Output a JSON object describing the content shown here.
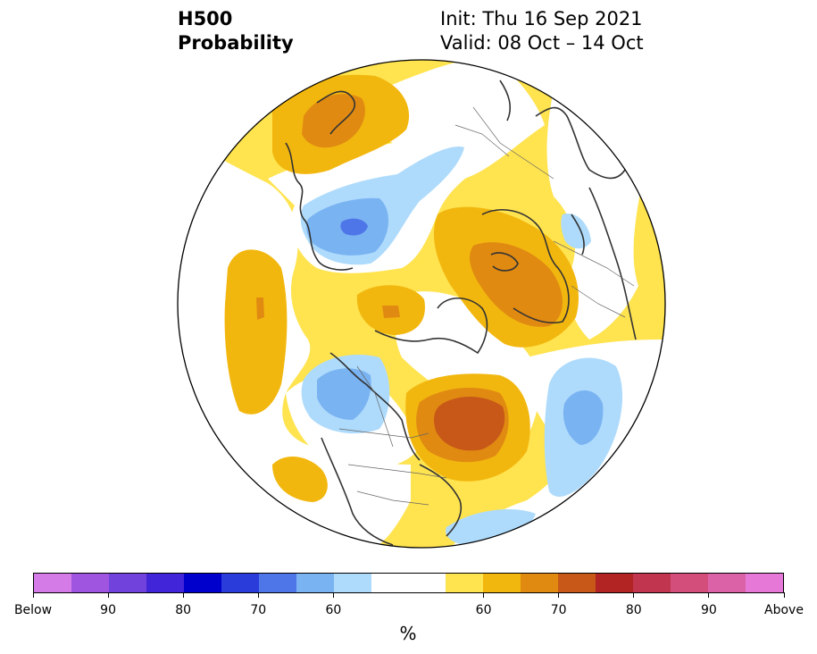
{
  "title": {
    "line1": "H500",
    "line2": "Probability",
    "init": "Init: Thu 16 Sep 2021",
    "valid": "Valid: 08 Oct – 14 Oct"
  },
  "colorbar": {
    "colors": [
      "#d47be8",
      "#a055e0",
      "#7242dc",
      "#4125d8",
      "#0000cc",
      "#2a3ddb",
      "#4f76e8",
      "#7ab3f2",
      "#aedbfc",
      "#ffffff",
      "#ffffff",
      "#ffe34f",
      "#f2b70e",
      "#e08a12",
      "#c85818",
      "#b22424",
      "#c2354f",
      "#d44e7c",
      "#dc62a8",
      "#e678d8"
    ],
    "tick_labels": [
      "Below",
      "90",
      "80",
      "70",
      "60",
      "60",
      "70",
      "80",
      "90",
      "Above"
    ],
    "unit": "%"
  },
  "map": {
    "projection": "north polar stereographic",
    "colors": {
      "below_60": "#aedbfc",
      "below_70": "#7ab3f2",
      "below_80": "#4f76e8",
      "above_50": "#ffe34f",
      "above_60": "#f2b70e",
      "above_70": "#e08a12",
      "above_80": "#c85818",
      "coast": "#333333",
      "border": "#555555"
    }
  }
}
